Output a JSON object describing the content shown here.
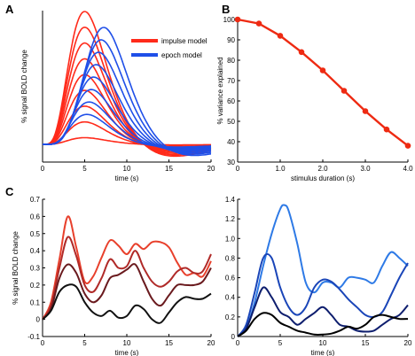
{
  "panels": {
    "A": "A",
    "B": "B",
    "C": "C"
  },
  "chart_data": [
    {
      "panel": "A",
      "type": "line",
      "title": "",
      "xlabel": "time (s)",
      "ylabel": "% signal BOLD change",
      "xlim": [
        0,
        20
      ],
      "xticks": [
        0,
        5,
        10,
        15,
        20
      ],
      "yticks": [],
      "legend": {
        "position": "top-right",
        "entries": [
          {
            "name": "impulse model",
            "color": "#ff2a1a"
          },
          {
            "name": "epoch model",
            "color": "#1f4fe8"
          }
        ]
      },
      "series_groups": [
        {
          "name": "impulse model",
          "color": "#ff2a1a",
          "durations": [
            0.0,
            0.5,
            1.0,
            1.5,
            2.0,
            2.5,
            3.0,
            3.5,
            4.0
          ]
        },
        {
          "name": "epoch model",
          "color": "#1f4fe8",
          "durations": [
            0.5,
            1.0,
            1.5,
            2.0,
            2.5,
            3.0,
            3.5,
            4.0
          ]
        }
      ]
    },
    {
      "panel": "B",
      "type": "line",
      "title": "",
      "xlabel": "stimulus duration (s)",
      "ylabel": "% variance explained",
      "xlim": [
        0,
        4
      ],
      "ylim": [
        30,
        100
      ],
      "xticks": [
        "0",
        "1.0",
        "2.0",
        "3.0",
        "4.0"
      ],
      "yticks": [
        "30",
        "40",
        "50",
        "60",
        "70",
        "80",
        "90",
        "100"
      ],
      "color": "#ee2a12",
      "x": [
        0,
        0.5,
        1.0,
        1.5,
        2.0,
        2.5,
        3.0,
        3.5,
        4.0
      ],
      "y": [
        100,
        98,
        92,
        84,
        75,
        65,
        55,
        46,
        38
      ]
    },
    {
      "panel": "C-left",
      "type": "line",
      "title": "",
      "xlabel": "time (s)",
      "ylabel": "% signal BOLD change",
      "xlim": [
        0,
        20
      ],
      "ylim": [
        -0.1,
        0.7
      ],
      "xticks": [
        "0",
        "5",
        "10",
        "15",
        "20"
      ],
      "yticks": [
        "-0.1",
        "0",
        "0.1",
        "0.2",
        "0.3",
        "0.4",
        "0.5",
        "0.6",
        "0.7"
      ],
      "series": [
        {
          "color": "#e8402c",
          "x": [
            0,
            1,
            2,
            3,
            4,
            5,
            6,
            7,
            8,
            9,
            10,
            11,
            12,
            13,
            14,
            15,
            16,
            17,
            18,
            19,
            20
          ],
          "y": [
            0,
            0.1,
            0.35,
            0.6,
            0.42,
            0.22,
            0.25,
            0.36,
            0.46,
            0.43,
            0.38,
            0.44,
            0.41,
            0.45,
            0.45,
            0.42,
            0.33,
            0.26,
            0.27,
            0.25,
            0.34
          ]
        },
        {
          "color": "#b02a28",
          "x": [
            0,
            1,
            2,
            3,
            4,
            5,
            6,
            7,
            8,
            9,
            10,
            11,
            12,
            13,
            14,
            15,
            16,
            17,
            18,
            19,
            20
          ],
          "y": [
            0,
            0.08,
            0.3,
            0.48,
            0.37,
            0.2,
            0.16,
            0.24,
            0.35,
            0.3,
            0.31,
            0.4,
            0.3,
            0.22,
            0.19,
            0.22,
            0.28,
            0.3,
            0.27,
            0.28,
            0.38
          ]
        },
        {
          "color": "#6a1a1e",
          "x": [
            0,
            1,
            2,
            3,
            4,
            5,
            6,
            7,
            8,
            9,
            10,
            11,
            12,
            13,
            14,
            15,
            16,
            17,
            18,
            19,
            20
          ],
          "y": [
            0,
            0.06,
            0.24,
            0.32,
            0.27,
            0.15,
            0.1,
            0.14,
            0.24,
            0.26,
            0.29,
            0.32,
            0.22,
            0.12,
            0.08,
            0.14,
            0.2,
            0.2,
            0.2,
            0.22,
            0.3
          ]
        },
        {
          "color": "#111111",
          "x": [
            0,
            1,
            2,
            3,
            4,
            5,
            6,
            7,
            8,
            9,
            10,
            11,
            12,
            13,
            14,
            15,
            16,
            17,
            18,
            19,
            20
          ],
          "y": [
            0,
            0.05,
            0.16,
            0.2,
            0.19,
            0.1,
            0.04,
            0.02,
            0.05,
            0.01,
            0.02,
            0.08,
            0.06,
            0.0,
            -0.02,
            0.04,
            0.1,
            0.13,
            0.12,
            0.12,
            0.15
          ]
        }
      ]
    },
    {
      "panel": "C-right",
      "type": "line",
      "title": "",
      "xlabel": "time (s)",
      "ylabel": "",
      "xlim": [
        0,
        20
      ],
      "ylim": [
        0,
        1.4
      ],
      "xticks": [
        "0",
        "5",
        "10",
        "15",
        "20"
      ],
      "yticks": [
        "0",
        "0.2",
        "0.4",
        "0.6",
        "0.8",
        "1.0",
        "1.2",
        "1.4"
      ],
      "series": [
        {
          "color": "#2e7ae6",
          "x": [
            0,
            1,
            2,
            3,
            4,
            5,
            5.5,
            6,
            7,
            8,
            9,
            10,
            11,
            12,
            13,
            14,
            15,
            16,
            17,
            18,
            19,
            20
          ],
          "y": [
            0,
            0.08,
            0.35,
            0.72,
            1.05,
            1.3,
            1.34,
            1.28,
            0.95,
            0.55,
            0.45,
            0.55,
            0.55,
            0.5,
            0.6,
            0.6,
            0.58,
            0.55,
            0.72,
            0.86,
            0.8,
            0.72
          ]
        },
        {
          "color": "#1a45b8",
          "x": [
            0,
            1,
            2,
            3,
            4,
            5,
            6,
            7,
            8,
            9,
            10,
            11,
            12,
            13,
            14,
            15,
            16,
            17,
            18,
            19,
            20
          ],
          "y": [
            0,
            0.12,
            0.45,
            0.8,
            0.8,
            0.5,
            0.3,
            0.22,
            0.3,
            0.5,
            0.58,
            0.56,
            0.48,
            0.38,
            0.3,
            0.22,
            0.2,
            0.25,
            0.42,
            0.6,
            0.75
          ]
        },
        {
          "color": "#0e1e6e",
          "x": [
            0,
            1,
            2,
            3,
            4,
            5,
            6,
            7,
            8,
            9,
            10,
            11,
            12,
            13,
            14,
            15,
            16,
            17,
            18,
            19,
            20
          ],
          "y": [
            0,
            0.08,
            0.3,
            0.5,
            0.4,
            0.25,
            0.2,
            0.12,
            0.18,
            0.24,
            0.3,
            0.22,
            0.12,
            0.1,
            0.06,
            0.05,
            0.06,
            0.12,
            0.18,
            0.22,
            0.32
          ]
        },
        {
          "color": "#000000",
          "x": [
            0,
            1,
            2,
            3,
            4,
            5,
            6,
            7,
            8,
            9,
            10,
            11,
            12,
            13,
            14,
            15,
            16,
            17,
            18,
            19,
            20
          ],
          "y": [
            0,
            0.06,
            0.18,
            0.24,
            0.22,
            0.14,
            0.1,
            0.06,
            0.04,
            0.02,
            0.02,
            0.03,
            0.06,
            0.1,
            0.08,
            0.12,
            0.2,
            0.22,
            0.2,
            0.18,
            0.18
          ]
        }
      ]
    }
  ]
}
